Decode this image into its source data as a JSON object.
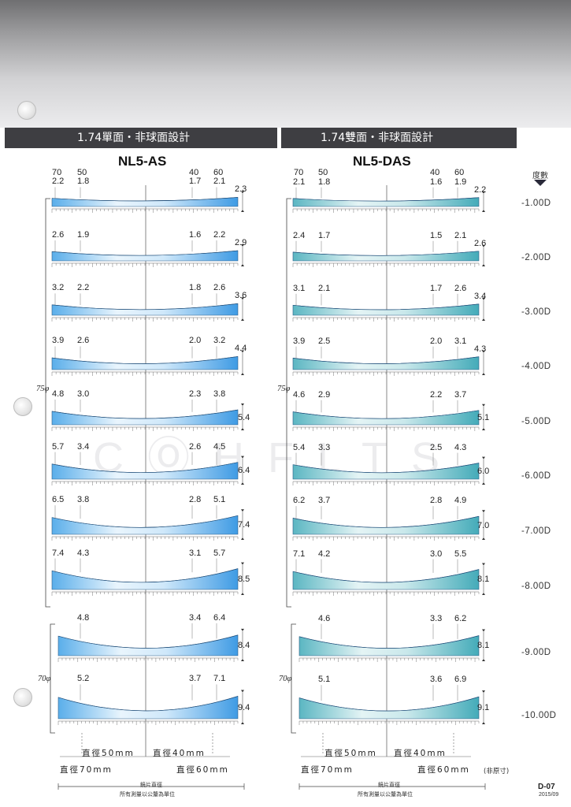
{
  "headers": {
    "left_title": "1.74單面・非球面設計",
    "right_title": "1.74雙面・非球面設計",
    "left_model": "NL5-AS",
    "right_model": "NL5-DAS"
  },
  "powers_heading": "度數",
  "powers": [
    "-1.00D",
    "-2.00D",
    "-3.00D",
    "-4.00D",
    "-5.00D",
    "-6.00D",
    "-7.00D",
    "-8.00D",
    "-9.00D",
    "-10.00D"
  ],
  "diameter_top_labels": [
    "70",
    "50",
    "40",
    "60"
  ],
  "bracket_labels": [
    "75φ",
    "70φ"
  ],
  "lenses": {
    "left": [
      {
        "values": [
          "2.2",
          "1.8",
          "1.7",
          "2.1"
        ],
        "edge": "2.3"
      },
      {
        "values": [
          "2.6",
          "1.9",
          "1.6",
          "2.2"
        ],
        "edge": "2.9"
      },
      {
        "values": [
          "3.2",
          "2.2",
          "1.8",
          "2.6"
        ],
        "edge": "3.6"
      },
      {
        "values": [
          "3.9",
          "2.6",
          "2.0",
          "3.2"
        ],
        "edge": "4.4"
      },
      {
        "values": [
          "4.8",
          "3.0",
          "2.3",
          "3.8"
        ],
        "edge": "5.4"
      },
      {
        "values": [
          "5.7",
          "3.4",
          "2.6",
          "4.5"
        ],
        "edge": "6.4"
      },
      {
        "values": [
          "6.5",
          "3.8",
          "2.8",
          "5.1"
        ],
        "edge": "7.4"
      },
      {
        "values": [
          "7.4",
          "4.3",
          "3.1",
          "5.7"
        ],
        "edge": "8.5"
      },
      {
        "values": [
          "",
          "4.8",
          "3.4",
          "6.4"
        ],
        "edge": "8.4"
      },
      {
        "values": [
          "",
          "5.2",
          "3.7",
          "7.1"
        ],
        "edge": "9.4"
      }
    ],
    "right": [
      {
        "values": [
          "2.1",
          "1.8",
          "1.6",
          "1.9"
        ],
        "edge": "2.2"
      },
      {
        "values": [
          "2.4",
          "1.7",
          "1.5",
          "2.1"
        ],
        "edge": "2.6"
      },
      {
        "values": [
          "3.1",
          "2.1",
          "1.7",
          "2.6"
        ],
        "edge": "3.4"
      },
      {
        "values": [
          "3.9",
          "2.5",
          "2.0",
          "3.1"
        ],
        "edge": "4.3"
      },
      {
        "values": [
          "4.6",
          "2.9",
          "2.2",
          "3.7"
        ],
        "edge": "5.1"
      },
      {
        "values": [
          "5.4",
          "3.3",
          "2.5",
          "4.3"
        ],
        "edge": "6.0"
      },
      {
        "values": [
          "6.2",
          "3.7",
          "2.8",
          "4.9"
        ],
        "edge": "7.0"
      },
      {
        "values": [
          "7.1",
          "4.2",
          "3.0",
          "5.5"
        ],
        "edge": "8.1"
      },
      {
        "values": [
          "",
          "4.6",
          "3.3",
          "6.2"
        ],
        "edge": "8.1"
      },
      {
        "values": [
          "",
          "5.1",
          "3.6",
          "6.9"
        ],
        "edge": "9.1"
      }
    ]
  },
  "bottom_labels": {
    "d50": "直徑50mm",
    "d40": "直徑40mm",
    "d70": "直徑70mm",
    "d60": "直徑60mm",
    "lens_diameter": "鏡片直徑",
    "unit_note": "所有測量以公釐為單位",
    "not_to_scale": "(非原寸)"
  },
  "watermark": "CⓄHFLTS",
  "page_number": "D-07",
  "page_date": "2015/09",
  "colors": {
    "left_lens_light": "#e6f3fc",
    "left_lens_dark": "#4aa3e6",
    "right_lens_light": "#e6f5f6",
    "right_lens_dark": "#49aebc",
    "tab_bg": "#3e3e42"
  }
}
